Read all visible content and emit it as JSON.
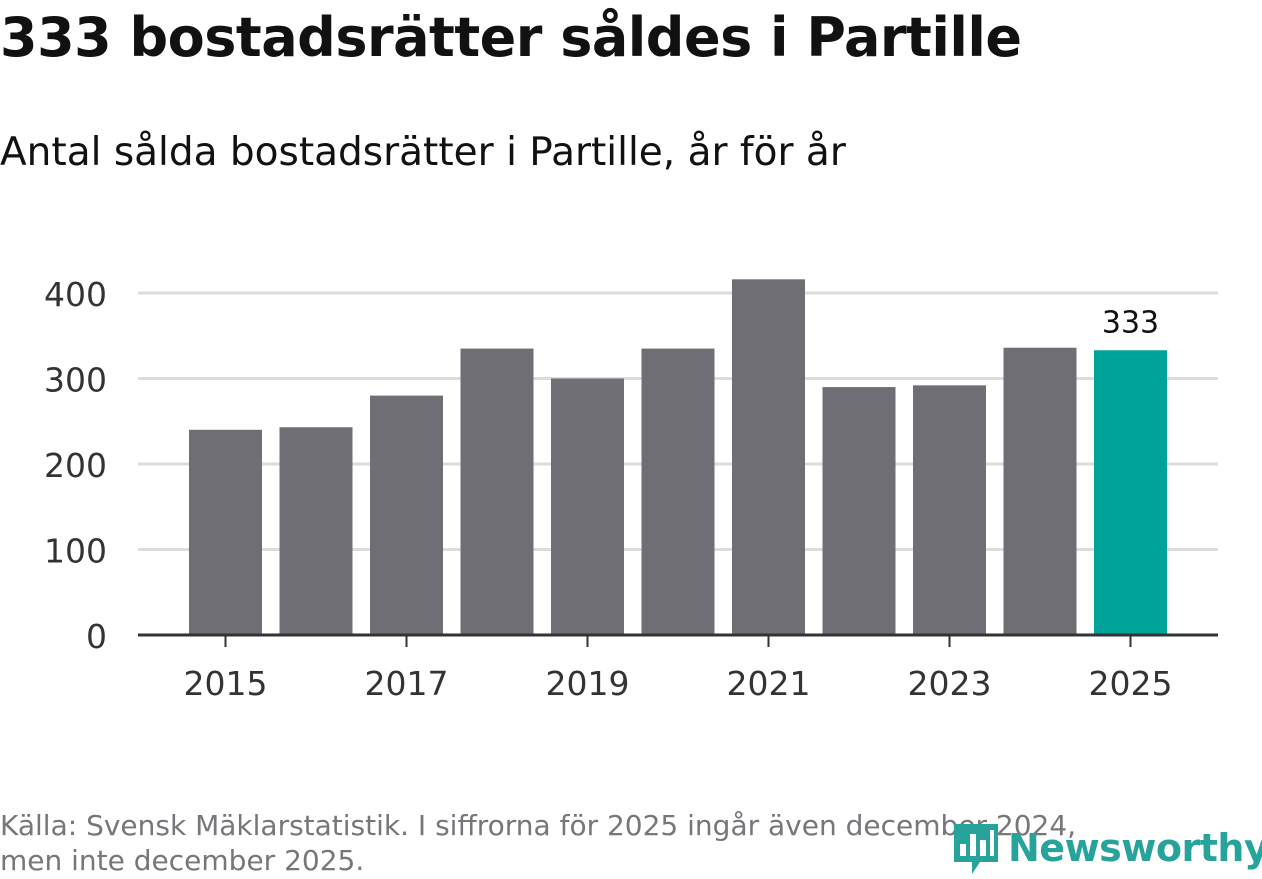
{
  "title": "333 bostadsrätter såldes i Partille",
  "subtitle": "Antal sålda bostadsrätter i Partille, år för år",
  "source_line1": "Källa: Svensk Mäklarstatistik. I siffrorna för 2025 ingår även december 2024,",
  "source_line2": "men inte december 2025.",
  "logo_text": "Newsworthy",
  "logo_icon": "newsworthy-bar-chart-icon",
  "colors": {
    "bar": "#6f6e74",
    "highlight": "#00a39a",
    "grid": "#dcdcdc",
    "axis": "#333333",
    "logo": "#28a39c",
    "source": "#77767a"
  },
  "chart_data": {
    "type": "bar",
    "title": "333 bostadsrätter såldes i Partille",
    "subtitle": "Antal sålda bostadsrätter i Partille, år för år",
    "categories": [
      "2015",
      "2016",
      "2017",
      "2018",
      "2019",
      "2020",
      "2021",
      "2022",
      "2023",
      "2024",
      "2025"
    ],
    "values": [
      240,
      243,
      280,
      335,
      300,
      335,
      416,
      290,
      292,
      336,
      333
    ],
    "highlight_index": 10,
    "highlight_label": "333",
    "xticks": [
      "2015",
      "2017",
      "2019",
      "2021",
      "2023",
      "2025"
    ],
    "yticks": [
      0,
      100,
      200,
      300,
      400
    ],
    "ylim": [
      0,
      440
    ],
    "xlabel": "",
    "ylabel": "",
    "grid": true
  }
}
